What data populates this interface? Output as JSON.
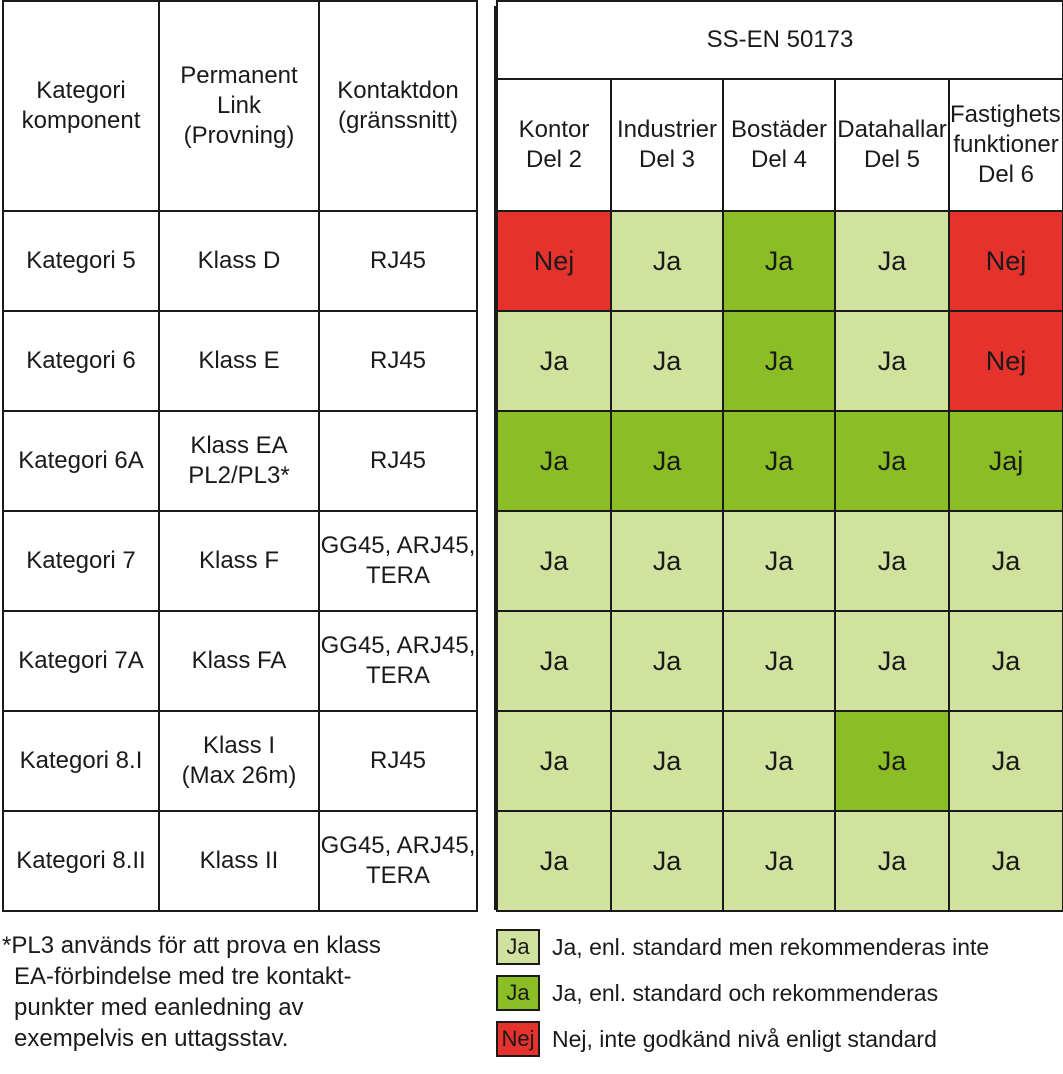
{
  "left": {
    "headers": [
      [
        "Kategori",
        "komponent"
      ],
      [
        "Permanent Link",
        "(Provning)"
      ],
      [
        "Kontaktdon",
        "(gränssnitt)"
      ]
    ],
    "rows": [
      {
        "kategori": [
          "Kategori 5"
        ],
        "link": [
          "Klass D"
        ],
        "kontakt": [
          "RJ45"
        ]
      },
      {
        "kategori": [
          "Kategori 6"
        ],
        "link": [
          "Klass E"
        ],
        "kontakt": [
          "RJ45"
        ]
      },
      {
        "kategori": [
          "Kategori 6A"
        ],
        "link": [
          "Klass EA",
          "PL2/PL3*"
        ],
        "kontakt": [
          "RJ45"
        ]
      },
      {
        "kategori": [
          "Kategori 7"
        ],
        "link": [
          "Klass F"
        ],
        "kontakt": [
          "GG45, ARJ45,",
          "TERA"
        ]
      },
      {
        "kategori": [
          "Kategori 7A"
        ],
        "link": [
          "Klass FA"
        ],
        "kontakt": [
          "GG45, ARJ45,",
          "TERA"
        ]
      },
      {
        "kategori": [
          "Kategori 8.I"
        ],
        "link": [
          "Klass I",
          "(Max 26m)"
        ],
        "kontakt": [
          "RJ45"
        ]
      },
      {
        "kategori": [
          "Kategori 8.II"
        ],
        "link": [
          "Klass II"
        ],
        "kontakt": [
          "GG45, ARJ45,",
          "TERA"
        ]
      }
    ]
  },
  "right": {
    "standard": "SS-EN 50173",
    "columns": [
      [
        "Kontor",
        "Del 2"
      ],
      [
        "Industrier",
        "Del 3"
      ],
      [
        "Bostäder",
        "Del 4"
      ],
      [
        "Datahallar",
        "Del 5"
      ],
      [
        "Fastighets-",
        "funktioner",
        "Del 6"
      ]
    ],
    "rows": [
      [
        {
          "t": "Nej",
          "c": "red"
        },
        {
          "t": "Ja",
          "c": "light"
        },
        {
          "t": "Ja",
          "c": "green"
        },
        {
          "t": "Ja",
          "c": "light"
        },
        {
          "t": "Nej",
          "c": "red"
        }
      ],
      [
        {
          "t": "Ja",
          "c": "light"
        },
        {
          "t": "Ja",
          "c": "light"
        },
        {
          "t": "Ja",
          "c": "green"
        },
        {
          "t": "Ja",
          "c": "light"
        },
        {
          "t": "Nej",
          "c": "red"
        }
      ],
      [
        {
          "t": "Ja",
          "c": "green"
        },
        {
          "t": "Ja",
          "c": "green"
        },
        {
          "t": "Ja",
          "c": "green"
        },
        {
          "t": "Ja",
          "c": "green"
        },
        {
          "t": "Jaj",
          "c": "green"
        }
      ],
      [
        {
          "t": "Ja",
          "c": "light"
        },
        {
          "t": "Ja",
          "c": "light"
        },
        {
          "t": "Ja",
          "c": "light"
        },
        {
          "t": "Ja",
          "c": "light"
        },
        {
          "t": "Ja",
          "c": "light"
        }
      ],
      [
        {
          "t": "Ja",
          "c": "light"
        },
        {
          "t": "Ja",
          "c": "light"
        },
        {
          "t": "Ja",
          "c": "light"
        },
        {
          "t": "Ja",
          "c": "light"
        },
        {
          "t": "Ja",
          "c": "light"
        }
      ],
      [
        {
          "t": "Ja",
          "c": "light"
        },
        {
          "t": "Ja",
          "c": "light"
        },
        {
          "t": "Ja",
          "c": "light"
        },
        {
          "t": "Ja",
          "c": "green"
        },
        {
          "t": "Ja",
          "c": "light"
        }
      ],
      [
        {
          "t": "Ja",
          "c": "light"
        },
        {
          "t": "Ja",
          "c": "light"
        },
        {
          "t": "Ja",
          "c": "light"
        },
        {
          "t": "Ja",
          "c": "light"
        },
        {
          "t": "Ja",
          "c": "light"
        }
      ]
    ]
  },
  "footnote": [
    "*PL3 används för att prova en klass",
    "EA-förbindelse med tre kontakt-",
    "punkter med eanledning av",
    "exempelvis en uttagsstav."
  ],
  "legend": [
    {
      "swatch": "Ja",
      "c": "light",
      "text": "Ja, enl. standard men rekommenderas inte"
    },
    {
      "swatch": "Ja",
      "c": "green",
      "text": "Ja, enl. standard och rekommenderas"
    },
    {
      "swatch": "Nej",
      "c": "red",
      "text": "Nej, inte godkänd nivå enligt standard"
    }
  ],
  "colors": {
    "light": "#d1e29f",
    "green": "#8bbd25",
    "red": "#e5322d"
  }
}
